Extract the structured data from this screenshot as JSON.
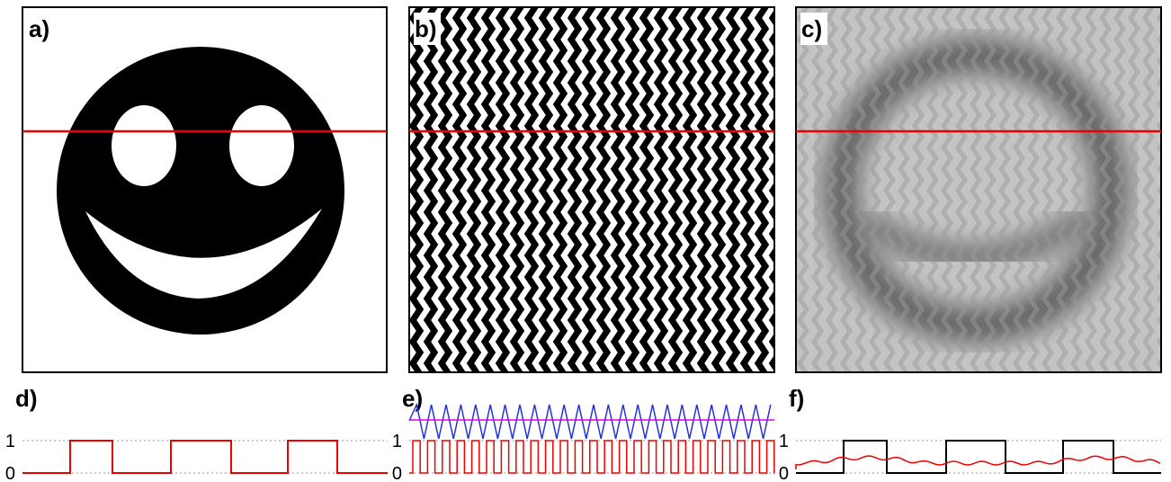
{
  "panels": [
    {
      "label": "a)"
    },
    {
      "label": "b)"
    },
    {
      "label": "c)"
    }
  ],
  "plots": [
    {
      "label": "d)",
      "yticks": [
        0,
        1
      ]
    },
    {
      "label": "e)",
      "yticks": [
        0,
        1
      ]
    },
    {
      "label": "f)",
      "yticks": [
        0,
        1
      ]
    }
  ]
}
